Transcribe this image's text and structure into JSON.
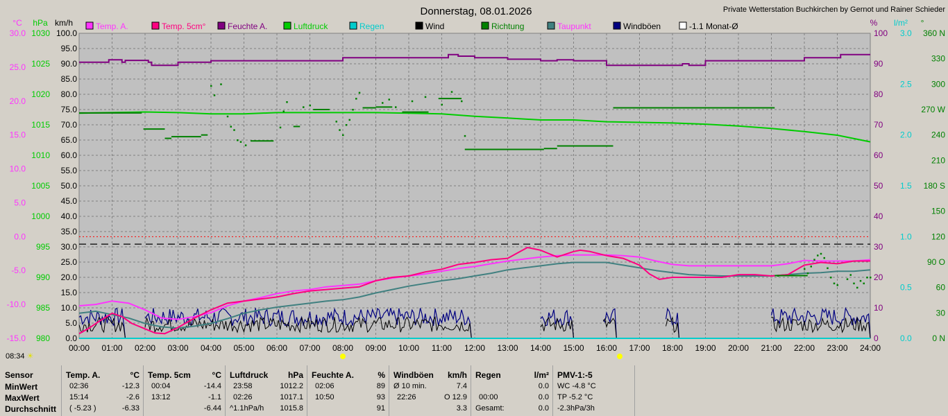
{
  "window": {
    "title": "Donnerstag, 08.01.2026",
    "station": "Private Wetterstation Buchkirchen by Gernot und Rainer Schieder",
    "clock": "08:34"
  },
  "colors": {
    "temp_a": "#ff33ff",
    "temp_5cm": "#ff0080",
    "feuchte": "#800080",
    "luftdruck": "#00cc00",
    "regen": "#00cccc",
    "wind": "#000000",
    "richtung": "#008000",
    "taupunkt": "#408080",
    "windboeen": "#000080",
    "monat": "#ffffff"
  },
  "chart_data": {
    "type": "line",
    "title": "Donnerstag, 08.01.2026",
    "x_ticks": [
      "00:00",
      "01:00",
      "02:00",
      "03:00",
      "04:00",
      "05:00",
      "06:00",
      "07:00",
      "08:00",
      "09:00",
      "10:00",
      "11:00",
      "12:00",
      "13:00",
      "14:00",
      "15:00",
      "16:00",
      "17:00",
      "18:00",
      "19:00",
      "20:00",
      "21:00",
      "22:00",
      "23:00",
      "24:00"
    ],
    "axes": {
      "temp": {
        "unit": "°C",
        "ticks": [
          "30.0",
          "25.0",
          "20.0",
          "15.0",
          "10.0",
          "5.0",
          "0.0",
          "-5.0",
          "-10.0",
          "-15.0"
        ],
        "range": [
          -15,
          30
        ]
      },
      "pressure": {
        "unit": "hPa",
        "ticks": [
          "1030",
          "1025",
          "1020",
          "1015",
          "1010",
          "1005",
          "1000",
          "995",
          "990",
          "985",
          "980"
        ],
        "range": [
          980,
          1030
        ]
      },
      "speed": {
        "unit": "km/h",
        "ticks": [
          "100.0",
          "95.0",
          "90.0",
          "85.0",
          "80.0",
          "75.0",
          "70.0",
          "65.0",
          "60.0",
          "55.0",
          "50.0",
          "45.0",
          "40.0",
          "35.0",
          "30.0",
          "25.0",
          "20.0",
          "15.0",
          "10.0",
          "5.0",
          "0.0"
        ],
        "range": [
          0,
          100
        ]
      },
      "humidity": {
        "unit": "%",
        "ticks": [
          "100",
          "90",
          "80",
          "70",
          "60",
          "50",
          "40",
          "30",
          "20",
          "10",
          "0"
        ],
        "range": [
          0,
          100
        ]
      },
      "rain": {
        "unit": "l/m²",
        "ticks": [
          "3.0",
          "2.5",
          "2.0",
          "1.5",
          "1.0",
          "0.5",
          "0.0"
        ],
        "range": [
          0,
          3
        ]
      },
      "direction": {
        "unit": "°",
        "ticks": [
          "360 N",
          "330",
          "300",
          "270 W",
          "240",
          "210",
          "180 S",
          "150",
          "120",
          "90 O",
          "60",
          "30",
          "0 N"
        ],
        "range": [
          0,
          360
        ]
      }
    },
    "legend": [
      {
        "name": "Temp. A.",
        "color": "#ff33ff",
        "text_color": "#ff33ff"
      },
      {
        "name": "Temp. 5cm°",
        "color": "#ff0080",
        "text_color": "#ff0080"
      },
      {
        "name": "Feuchte A.",
        "color": "#800080",
        "text_color": "#800080"
      },
      {
        "name": "Luftdruck",
        "color": "#00cc00",
        "text_color": "#00cc00"
      },
      {
        "name": "Regen",
        "color": "#00cccc",
        "text_color": "#00cccc"
      },
      {
        "name": "Wind",
        "color": "#000000",
        "text_color": "#000000"
      },
      {
        "name": "Richtung",
        "color": "#008000",
        "text_color": "#008000"
      },
      {
        "name": "Taupunkt",
        "color": "#408080",
        "text_color": "#ff33ff"
      },
      {
        "name": "Windböen",
        "color": "#000080",
        "text_color": "#000000"
      },
      {
        "name": "-1.1 Monat-Ø",
        "color": "#ffffff",
        "text_color": "#000000"
      }
    ],
    "series": {
      "temp_a": {
        "axis": "temp",
        "x": [
          0,
          0.5,
          1,
          1.5,
          2,
          2.5,
          3,
          3.5,
          4,
          4.5,
          5,
          5.5,
          6,
          6.5,
          7,
          7.5,
          8,
          8.5,
          9,
          9.5,
          10,
          10.5,
          11,
          11.5,
          12,
          12.5,
          13,
          13.5,
          14,
          14.5,
          15,
          15.5,
          16,
          16.5,
          17,
          17.5,
          18,
          18.5,
          19,
          19.5,
          20,
          20.5,
          21,
          21.5,
          22,
          22.5,
          23,
          23.5,
          24
        ],
        "y": [
          -10.2,
          -10,
          -9.5,
          -9.8,
          -10.8,
          -12,
          -12.2,
          -11.8,
          -11.2,
          -10.2,
          -9.5,
          -9,
          -8.4,
          -8,
          -7.8,
          -7.4,
          -7.2,
          -7,
          -6.5,
          -6.1,
          -5.8,
          -5.5,
          -5.1,
          -4.7,
          -4.4,
          -4.0,
          -3.6,
          -3.3,
          -3.0,
          -2.8,
          -2.7,
          -2.7,
          -2.7,
          -2.8,
          -3.0,
          -3.6,
          -4.1,
          -4.3,
          -4.3,
          -4.3,
          -4.3,
          -4.3,
          -4.3,
          -4.0,
          -3.5,
          -3.6,
          -3.6,
          -3.6,
          -3.4
        ]
      },
      "temp_5cm": {
        "axis": "temp",
        "x": [
          0,
          0.3,
          0.6,
          1,
          1.3,
          1.6,
          2,
          2.3,
          2.6,
          3,
          3.5,
          4,
          4.5,
          5,
          5.5,
          6,
          6.5,
          7,
          7.5,
          8,
          8.5,
          9,
          9.5,
          10,
          10.5,
          11,
          11.5,
          12,
          12.5,
          13,
          13.3,
          13.6,
          14,
          14.5,
          15,
          15.2,
          15.5,
          16,
          16.5,
          17,
          17.3,
          17.6,
          18,
          18.5,
          19,
          19.5,
          20,
          20.5,
          21,
          21.5,
          22,
          22.5,
          23,
          23.5,
          24
        ],
        "y": [
          -14.3,
          -13.5,
          -12.5,
          -11.3,
          -11.8,
          -12.8,
          -13.6,
          -14.2,
          -14.3,
          -13.4,
          -12.0,
          -10.8,
          -9.8,
          -9.5,
          -9.2,
          -8.9,
          -8.4,
          -8.0,
          -7.8,
          -7.6,
          -7.4,
          -6.5,
          -6.0,
          -5.8,
          -5.2,
          -4.8,
          -4.1,
          -3.8,
          -3.4,
          -3.2,
          -2.4,
          -1.6,
          -2.0,
          -3.0,
          -2.2,
          -2.0,
          -2.2,
          -2.8,
          -3.2,
          -4.2,
          -5.5,
          -6.3,
          -6.0,
          -6.0,
          -6.0,
          -6.0,
          -5.6,
          -5.6,
          -5.8,
          -5.6,
          -4.2,
          -3.8,
          -4.0,
          -3.6,
          -3.6
        ]
      },
      "taupunkt": {
        "axis": "temp",
        "x": [
          0,
          0.5,
          1,
          1.5,
          2,
          2.5,
          3,
          3.5,
          4,
          4.5,
          5,
          5.5,
          6,
          6.5,
          7,
          7.5,
          8,
          8.5,
          9,
          9.5,
          10,
          10.5,
          11,
          11.5,
          12,
          12.5,
          13,
          13.5,
          14,
          14.5,
          15,
          15.5,
          16,
          16.5,
          17,
          17.5,
          18,
          18.5,
          19,
          19.5,
          20,
          20.5,
          21,
          21.5,
          22,
          22.5,
          23,
          23.5,
          24
        ],
        "y": [
          -11.3,
          -11.0,
          -11.5,
          -12.0,
          -12.8,
          -13.3,
          -13.5,
          -13.2,
          -12.8,
          -12.1,
          -11.3,
          -10.8,
          -10.4,
          -10.1,
          -9.8,
          -9.5,
          -9.3,
          -8.9,
          -8.3,
          -7.8,
          -7.3,
          -6.9,
          -6.5,
          -6.2,
          -5.8,
          -5.4,
          -4.9,
          -4.6,
          -4.3,
          -4.0,
          -3.8,
          -3.8,
          -3.8,
          -4.2,
          -4.6,
          -5.0,
          -5.3,
          -5.6,
          -5.7,
          -5.8,
          -5.8,
          -5.8,
          -5.8,
          -5.6,
          -5.4,
          -5.3,
          -5.1,
          -5.1,
          -4.9
        ]
      },
      "feuchte": {
        "axis": "humidity",
        "x": [
          0,
          0.8,
          0.9,
          1.3,
          1.4,
          2.1,
          2.2,
          2.8,
          3,
          4,
          5,
          6,
          7,
          7.8,
          8,
          9,
          10,
          11,
          11.2,
          11.5,
          12,
          13,
          14,
          14.5,
          15,
          16,
          17,
          18,
          18.3,
          18.5,
          19,
          20,
          21,
          22,
          23,
          23.1,
          24
        ],
        "y": [
          90.5,
          90.5,
          91.3,
          90.5,
          91.1,
          90.5,
          89.5,
          89.5,
          90.5,
          91,
          91,
          91,
          91,
          91,
          92,
          92,
          92,
          92,
          93,
          92.5,
          92,
          91.5,
          91,
          91.3,
          91,
          89.5,
          89.5,
          89.5,
          90,
          89.5,
          91,
          91,
          91,
          92,
          92,
          93,
          93
        ]
      },
      "luftdruck": {
        "axis": "pressure",
        "x": [
          0,
          1,
          2,
          3,
          4,
          5,
          6,
          7,
          8,
          9,
          10,
          11,
          12,
          13,
          14,
          15,
          16,
          17,
          18,
          19,
          20,
          21,
          22,
          23,
          24
        ],
        "y": [
          1016.9,
          1017.0,
          1017.1,
          1017.0,
          1016.8,
          1016.8,
          1017.0,
          1017.0,
          1017.0,
          1017.0,
          1016.9,
          1016.8,
          1016.4,
          1016.1,
          1015.8,
          1015.8,
          1015.5,
          1015.4,
          1015.3,
          1015.1,
          1014.8,
          1014.4,
          1013.9,
          1013.3,
          1012.2
        ]
      },
      "regen": {
        "axis": "rain",
        "x": [
          0,
          24
        ],
        "y": [
          0,
          0
        ]
      },
      "monat": {
        "axis": "temp",
        "value": -1.1
      },
      "zero_line": {
        "axis": "temp",
        "value": 0
      }
    },
    "wind_ranges": [
      [
        0.0,
        1.4
      ],
      [
        2.0,
        11.9
      ],
      [
        14.0,
        15.0
      ],
      [
        15.9,
        16.3
      ],
      [
        17.8,
        18.2
      ],
      [
        21.0,
        24.0
      ]
    ],
    "richtung_segments": [
      {
        "x0": 0.0,
        "x1": 1.9,
        "deg": 266
      },
      {
        "x0": 1.95,
        "x1": 2.6,
        "deg": 247
      },
      {
        "x0": 2.6,
        "x1": 2.8,
        "deg": 236
      },
      {
        "x0": 2.8,
        "x1": 3.7,
        "deg": 238
      },
      {
        "x0": 3.7,
        "x1": 3.9,
        "deg": 240
      },
      {
        "x0": 5.2,
        "x1": 5.9,
        "deg": 233
      },
      {
        "x0": 6.5,
        "x1": 6.7,
        "deg": 250
      },
      {
        "x0": 7.1,
        "x1": 7.6,
        "deg": 270
      },
      {
        "x0": 8.6,
        "x1": 9.0,
        "deg": 272
      },
      {
        "x0": 9.0,
        "x1": 9.5,
        "deg": 273
      },
      {
        "x0": 9.8,
        "x1": 10.6,
        "deg": 267
      },
      {
        "x0": 10.9,
        "x1": 11.6,
        "deg": 283
      },
      {
        "x0": 11.7,
        "x1": 14.1,
        "deg": 223
      },
      {
        "x0": 14.1,
        "x1": 14.5,
        "deg": 224
      },
      {
        "x0": 14.5,
        "x1": 16.2,
        "deg": 227
      },
      {
        "x0": 16.2,
        "x1": 21.1,
        "deg": 272
      },
      {
        "x0": 21.1,
        "x1": 22.1,
        "deg": 74
      }
    ],
    "richtung_points": [
      {
        "x": 4.0,
        "deg": 298
      },
      {
        "x": 4.1,
        "deg": 287
      },
      {
        "x": 4.3,
        "deg": 300
      },
      {
        "x": 4.5,
        "deg": 262
      },
      {
        "x": 4.6,
        "deg": 250
      },
      {
        "x": 4.7,
        "deg": 246
      },
      {
        "x": 4.8,
        "deg": 234
      },
      {
        "x": 4.9,
        "deg": 232
      },
      {
        "x": 5.05,
        "deg": 228
      },
      {
        "x": 6.1,
        "deg": 249
      },
      {
        "x": 6.2,
        "deg": 268
      },
      {
        "x": 6.3,
        "deg": 279
      },
      {
        "x": 6.8,
        "deg": 273
      },
      {
        "x": 7.0,
        "deg": 275
      },
      {
        "x": 7.8,
        "deg": 256
      },
      {
        "x": 7.9,
        "deg": 246
      },
      {
        "x": 8.0,
        "deg": 240
      },
      {
        "x": 8.1,
        "deg": 252
      },
      {
        "x": 8.2,
        "deg": 258
      },
      {
        "x": 8.3,
        "deg": 270
      },
      {
        "x": 8.4,
        "deg": 283
      },
      {
        "x": 8.5,
        "deg": 290
      },
      {
        "x": 9.2,
        "deg": 278
      },
      {
        "x": 9.4,
        "deg": 282
      },
      {
        "x": 9.6,
        "deg": 273
      },
      {
        "x": 10.1,
        "deg": 280
      },
      {
        "x": 10.5,
        "deg": 285
      },
      {
        "x": 11.0,
        "deg": 276
      },
      {
        "x": 11.3,
        "deg": 291
      },
      {
        "x": 11.6,
        "deg": 280
      },
      {
        "x": 11.7,
        "deg": 239
      },
      {
        "x": 21.2,
        "deg": 74
      },
      {
        "x": 22.0,
        "deg": 82
      },
      {
        "x": 22.1,
        "deg": 77
      },
      {
        "x": 22.2,
        "deg": 85
      },
      {
        "x": 22.3,
        "deg": 93
      },
      {
        "x": 22.4,
        "deg": 98
      },
      {
        "x": 22.5,
        "deg": 100
      },
      {
        "x": 22.6,
        "deg": 95
      },
      {
        "x": 22.7,
        "deg": 83
      },
      {
        "x": 22.8,
        "deg": 72
      },
      {
        "x": 22.9,
        "deg": 65
      },
      {
        "x": 23.0,
        "deg": 63
      },
      {
        "x": 23.3,
        "deg": 70
      },
      {
        "x": 23.4,
        "deg": 75
      },
      {
        "x": 23.5,
        "deg": 65
      },
      {
        "x": 23.6,
        "deg": 60
      },
      {
        "x": 23.7,
        "deg": 68
      },
      {
        "x": 23.8,
        "deg": 65
      },
      {
        "x": 23.9,
        "deg": 72
      },
      {
        "x": 24.0,
        "deg": 72
      }
    ],
    "markers": [
      {
        "label": "08:00",
        "x": 8.0,
        "color": "#ffff00"
      },
      {
        "label": "16:30",
        "x": 16.4,
        "color": "#ffff00"
      }
    ]
  },
  "summary": {
    "rows": [
      "Sensor",
      "MinWert",
      "MaxWert",
      "Durchschnitt"
    ],
    "temp_a": {
      "header": "Temp. A.",
      "unit": "°C",
      "min_time": "02:36",
      "min": "-12.3",
      "max_time": "15:14",
      "max": "-2.6",
      "avg_extra": "( -5.23 )",
      "avg": "-6.33"
    },
    "temp_5cm": {
      "header": "Temp. 5cm",
      "unit": "°C",
      "min_time": "00:04",
      "min": "-14.4",
      "max_time": "13:12",
      "max": "-1.1",
      "avg": "-6.44"
    },
    "luftdruck": {
      "header": "Luftdruck",
      "unit": "hPa",
      "min_time": "23:58",
      "min": "1012.2",
      "max_time": "02:26",
      "max": "1017.1",
      "avg_extra": "^1.1hPa/h",
      "avg": "1015.8"
    },
    "feuchte": {
      "header": "Feuchte A.",
      "unit": "%",
      "min_time": "02:06",
      "min": "89",
      "max_time": "10:50",
      "max": "93",
      "avg": "91"
    },
    "windboeen": {
      "header": "Windböen",
      "unit": "km/h",
      "min_label": "Ø 10 min.",
      "min": "7.4",
      "max_time": "22:26",
      "max": "O 12.9",
      "avg": "3.3"
    },
    "regen": {
      "header": "Regen",
      "unit": "l/m²",
      "min": "0.0",
      "max_time": "00:00",
      "max": "0.0",
      "avg_label": "Gesamt:",
      "avg": "0.0"
    },
    "pmv": {
      "header": "PMV-1:-5",
      "min": "WC -4.8 °C",
      "max": "TP -5.2 °C",
      "avg": "-2.3hPa/3h"
    }
  }
}
